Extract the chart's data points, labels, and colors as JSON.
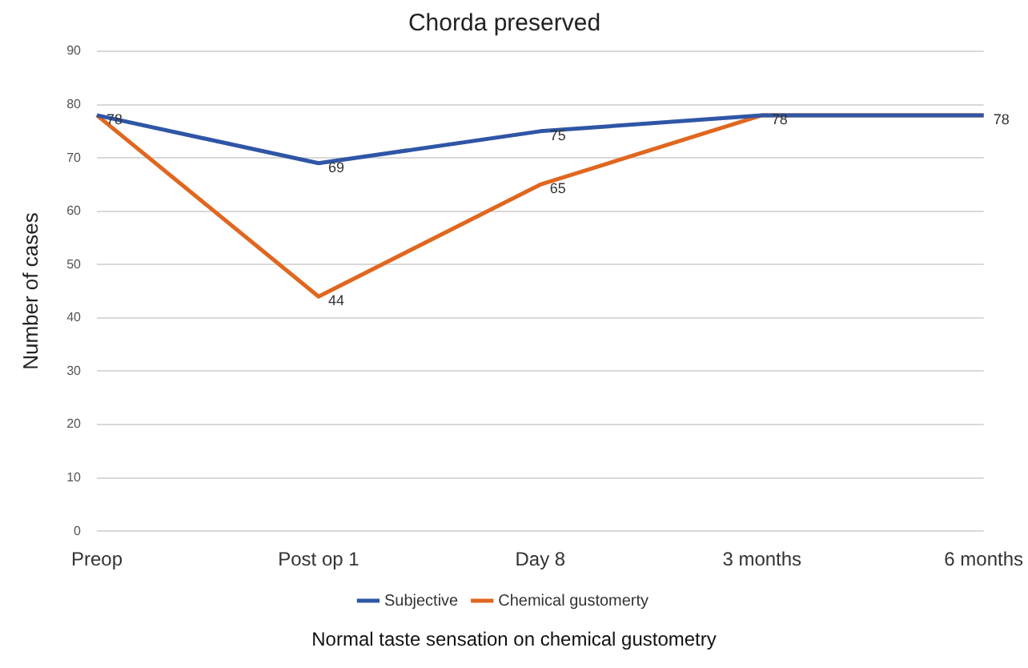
{
  "chart_data": {
    "type": "line",
    "title": "Chorda preserved",
    "ylabel": "Number of cases",
    "categories": [
      "Preop",
      "Post op 1",
      "Day 8",
      "3 months",
      "6 months"
    ],
    "series": [
      {
        "name": "Subjective",
        "color": "#2f56a6",
        "values": [
          78,
          69,
          75,
          78,
          78
        ],
        "value_labels": [
          "78",
          "69",
          "75",
          "78",
          "78"
        ]
      },
      {
        "name": "Chemical gustomerty",
        "color": "#e0671f",
        "values": [
          78,
          44,
          65,
          78,
          78
        ],
        "value_labels": [
          null,
          "44",
          "65",
          null,
          null
        ]
      }
    ],
    "ylim": [
      0,
      90
    ],
    "yticks": [
      0,
      10,
      20,
      30,
      40,
      50,
      60,
      70,
      80,
      90
    ],
    "grid": "y",
    "legend": "bottom",
    "marker": "none",
    "line_style": "solid",
    "annotations": [
      "Normal taste sensation on chemical gustometry"
    ]
  }
}
